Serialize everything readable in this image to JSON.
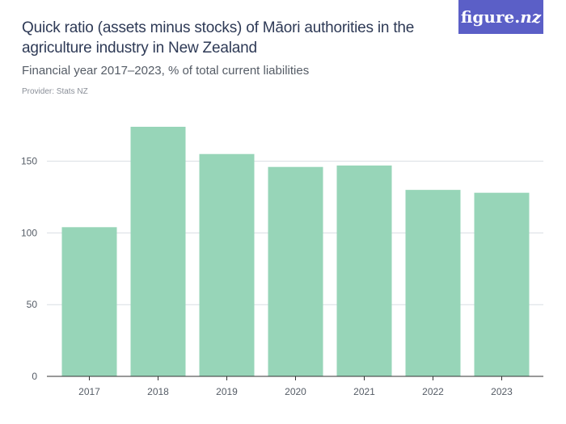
{
  "header": {
    "title": "Quick ratio (assets minus stocks) of Māori authorities in the agriculture industry in New Zealand",
    "subtitle": "Financial year 2017–2023, % of total current liabilities",
    "provider": "Provider: Stats NZ"
  },
  "logo": {
    "text_main": "figure.",
    "text_nz": "nz"
  },
  "colors": {
    "bar": "#97d5b8",
    "grid": "#d9dde3",
    "axis": "#333333",
    "logo_bg": "#5b5fc7",
    "title": "#2e3a56"
  },
  "chart_data": {
    "type": "bar",
    "title": "Quick ratio (assets minus stocks) of Māori authorities in the agriculture industry in New Zealand",
    "subtitle": "Financial year 2017–2023, % of total current liabilities",
    "categories": [
      "2017",
      "2018",
      "2019",
      "2020",
      "2021",
      "2022",
      "2023"
    ],
    "values": [
      104,
      174,
      155,
      146,
      147,
      130,
      128
    ],
    "yticks": [
      0,
      50,
      100,
      150
    ],
    "ylim": [
      0,
      180
    ],
    "grid": true,
    "xlabel": "",
    "ylabel": ""
  }
}
